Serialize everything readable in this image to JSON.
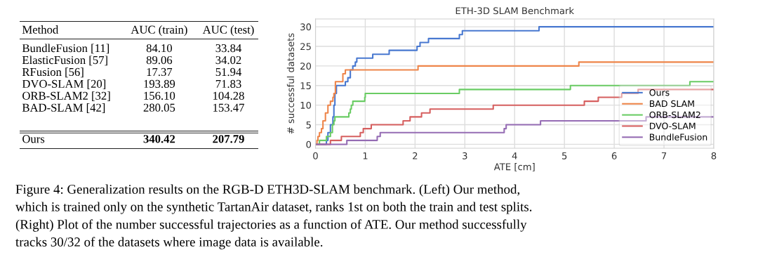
{
  "chart_data": [
    {
      "type": "other",
      "ylabel": "Method",
      "categories": [
        "BundleFusion [11]",
        "ElasticFusion [57]",
        "RFusion [56]",
        "DVO-SLAM [20]",
        "ORB-SLAM2 [32]",
        "BAD-SLAM [42]",
        "Ours"
      ],
      "series": [
        {
          "name": "AUC (train)",
          "values": [
            84.1,
            89.06,
            17.37,
            193.89,
            156.1,
            280.05,
            340.42
          ],
          "value_labels": [
            "84.10",
            "89.06",
            "17.37",
            "193.89",
            "156.10",
            "280.05",
            "340.42"
          ]
        },
        {
          "name": "AUC (test)",
          "values": [
            33.84,
            34.02,
            51.94,
            71.83,
            104.28,
            153.47,
            207.79
          ],
          "value_labels": [
            "33.84",
            "34.02",
            "51.94",
            "71.83",
            "104.28",
            "153.47",
            "207.79"
          ]
        }
      ],
      "data_labels": true,
      "annotations": [
        "Figure 4: Generalization results on the RGB-D ETH3D-SLAM benchmark. (Left) Our method,",
        "which is trained only on the synthetic TartanAir dataset, ranks 1st on both the train and test splits.",
        "(Right) Plot of the number successful trajectories as a function of ATE. Our method successfully",
        "tracks 30/32 of the datasets where image data is available."
      ]
    },
    {
      "type": "step",
      "title": "ETH-3D SLAM Benchmark",
      "xlabel": "ATE [cm]",
      "ylabel": "# successful datasets",
      "xlim": [
        0,
        8
      ],
      "ylim": [
        -1,
        32
      ],
      "xticks": [
        0,
        1,
        2,
        3,
        4,
        5,
        6,
        7,
        8
      ],
      "yticks": [
        0,
        5,
        10,
        15,
        20,
        25,
        30
      ],
      "grid": true,
      "legend": "bottom right",
      "marker": "none",
      "line_style": "solid",
      "series": [
        {
          "name": "Ours",
          "color": "#4878d0",
          "x": [
            0,
            0.22,
            0.25,
            0.3,
            0.35,
            0.37,
            0.39,
            0.42,
            0.6,
            0.65,
            0.7,
            0.75,
            0.8,
            0.83,
            1.15,
            1.48,
            2.04,
            2.1,
            2.27,
            2.89,
            2.95,
            4.49,
            8
          ],
          "values": [
            0,
            1,
            3,
            5,
            7,
            10,
            13,
            15,
            16,
            17,
            19,
            20,
            21,
            22,
            23,
            24,
            25,
            26,
            27,
            28,
            29,
            30,
            30
          ]
        },
        {
          "name": "BAD SLAM",
          "color": "#ee854a",
          "x": [
            0,
            0.03,
            0.05,
            0.08,
            0.12,
            0.15,
            0.2,
            0.25,
            0.3,
            0.35,
            0.37,
            0.4,
            0.55,
            0.6,
            2.06,
            5.29,
            8
          ],
          "values": [
            0,
            1,
            2,
            3,
            4,
            6,
            8,
            10,
            11,
            12,
            13,
            16,
            18,
            19,
            20,
            21,
            21
          ]
        },
        {
          "name": "ORB-SLAM2",
          "color": "#6acc64",
          "x": [
            0,
            0.08,
            0.22,
            0.3,
            0.34,
            0.37,
            0.39,
            0.67,
            0.7,
            0.72,
            0.75,
            0.99,
            1.0,
            2.89,
            5.12,
            7.52,
            8
          ],
          "values": [
            0,
            1,
            2,
            3,
            5,
            6,
            7,
            8,
            9,
            10,
            11,
            12,
            13,
            14,
            15,
            16,
            16
          ]
        },
        {
          "name": "DVO-SLAM",
          "color": "#d65f5f",
          "x": [
            0,
            0.3,
            0.52,
            0.9,
            0.96,
            1.12,
            1.76,
            1.9,
            2.13,
            2.3,
            3.57,
            5.4,
            5.68,
            6.15,
            6.48,
            8
          ],
          "values": [
            0,
            1,
            2,
            3,
            4,
            5,
            6,
            7,
            8,
            9,
            10,
            11,
            12,
            13,
            14,
            14
          ]
        },
        {
          "name": "BundleFusion",
          "color": "#956cb4",
          "x": [
            0,
            0.63,
            1.24,
            1.3,
            3.79,
            3.83,
            4.52,
            6.64,
            8
          ],
          "values": [
            0,
            1,
            2,
            3,
            4,
            5,
            6,
            7,
            7
          ]
        }
      ]
    }
  ]
}
